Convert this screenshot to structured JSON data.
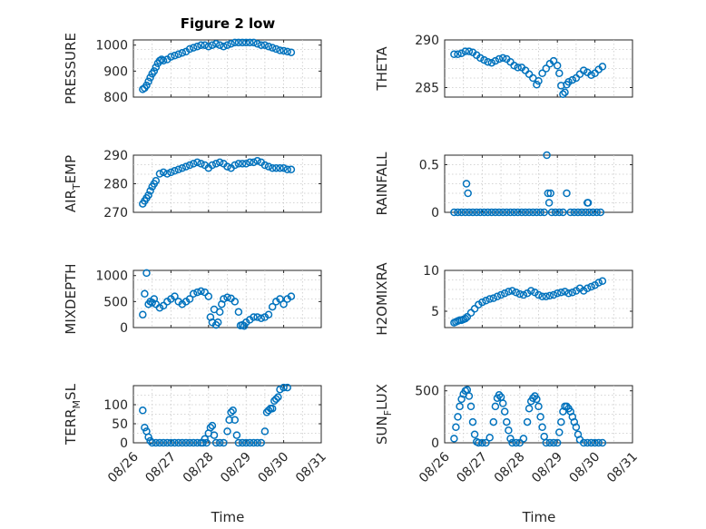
{
  "figure": {
    "title": "Figure 2 low",
    "xlabel": "Time",
    "x_ticks": [
      "08/26",
      "08/27",
      "08/28",
      "08/29",
      "08/30",
      "08/31"
    ],
    "marker_color": "#0072BD"
  },
  "chart_data": [
    {
      "type": "scatter",
      "ylabel": "PRESSURE",
      "ylim": [
        800,
        1020
      ],
      "yticks": [
        "800",
        "900",
        "1000"
      ],
      "ytick_values": [
        800,
        900,
        1000
      ],
      "x": [
        0.25,
        0.3,
        0.35,
        0.4,
        0.45,
        0.5,
        0.55,
        0.6,
        0.65,
        0.7,
        0.75,
        0.8,
        0.9,
        1.0,
        1.1,
        1.2,
        1.3,
        1.4,
        1.5,
        1.6,
        1.7,
        1.8,
        1.9,
        2.0,
        2.1,
        2.2,
        2.3,
        2.4,
        2.5,
        2.6,
        2.7,
        2.8,
        2.9,
        3.0,
        3.1,
        3.2,
        3.3,
        3.4,
        3.5,
        3.6,
        3.7,
        3.8,
        3.9,
        4.0,
        4.1,
        4.2
      ],
      "y": [
        830,
        835,
        845,
        860,
        875,
        890,
        900,
        915,
        930,
        940,
        945,
        940,
        945,
        955,
        960,
        965,
        970,
        975,
        985,
        990,
        995,
        1000,
        1000,
        995,
        1000,
        1005,
        1000,
        995,
        1000,
        1005,
        1010,
        1010,
        1010,
        1010,
        1010,
        1010,
        1005,
        1000,
        1000,
        995,
        990,
        985,
        980,
        978,
        975,
        972
      ]
    },
    {
      "type": "scatter",
      "ylabel": "THETA",
      "ylim": [
        284,
        290
      ],
      "yticks": [
        "285",
        "290"
      ],
      "ytick_values": [
        285,
        290
      ],
      "x": [
        0.25,
        0.35,
        0.45,
        0.55,
        0.65,
        0.75,
        0.85,
        0.95,
        1.05,
        1.15,
        1.25,
        1.35,
        1.45,
        1.55,
        1.65,
        1.75,
        1.85,
        1.95,
        2.05,
        2.15,
        2.25,
        2.35,
        2.45,
        2.5,
        2.6,
        2.7,
        2.8,
        2.9,
        3.0,
        3.05,
        3.1,
        3.15,
        3.2,
        3.25,
        3.3,
        3.4,
        3.5,
        3.6,
        3.7,
        3.8,
        3.9,
        4.0,
        4.1,
        4.2
      ],
      "y": [
        288.5,
        288.5,
        288.6,
        288.8,
        288.8,
        288.7,
        288.4,
        288.1,
        287.9,
        287.7,
        287.6,
        287.8,
        288.0,
        288.1,
        288.0,
        287.7,
        287.3,
        287.1,
        287.1,
        286.8,
        286.4,
        286.0,
        285.3,
        285.7,
        286.5,
        287.0,
        287.5,
        287.8,
        287.3,
        286.5,
        285.2,
        284.3,
        284.5,
        285.3,
        285.6,
        285.8,
        286.0,
        286.4,
        286.8,
        286.6,
        286.3,
        286.5,
        286.9,
        287.2
      ]
    },
    {
      "type": "scatter",
      "ylabel": "AIR_TEMP",
      "ylim": [
        270,
        290
      ],
      "yticks": [
        "270",
        "280",
        "290"
      ],
      "ytick_values": [
        270,
        280,
        290
      ],
      "x": [
        0.25,
        0.3,
        0.35,
        0.4,
        0.45,
        0.5,
        0.55,
        0.6,
        0.7,
        0.8,
        0.9,
        1.0,
        1.1,
        1.2,
        1.3,
        1.4,
        1.5,
        1.6,
        1.7,
        1.8,
        1.9,
        2.0,
        2.1,
        2.2,
        2.3,
        2.4,
        2.5,
        2.6,
        2.7,
        2.8,
        2.9,
        3.0,
        3.1,
        3.2,
        3.3,
        3.4,
        3.5,
        3.6,
        3.7,
        3.8,
        3.9,
        4.0,
        4.1,
        4.2
      ],
      "y": [
        273,
        274,
        275,
        276,
        277.5,
        279,
        280,
        281,
        283.5,
        284,
        283.5,
        284,
        284.5,
        285,
        285.5,
        286,
        286.5,
        287,
        287.5,
        287,
        286.5,
        285.5,
        286.5,
        287,
        287.5,
        287,
        286,
        285.5,
        286.5,
        287,
        287,
        287,
        287.5,
        287.5,
        288,
        287.5,
        286.5,
        286,
        285.5,
        285.5,
        285.5,
        285.5,
        285,
        285
      ]
    },
    {
      "type": "scatter",
      "ylabel": "RAINFALL",
      "ylim": [
        0,
        0.6
      ],
      "yticks": [
        "0",
        "0.5"
      ],
      "ytick_values": [
        0,
        0.5
      ],
      "x": [
        0.25,
        0.35,
        0.45,
        0.55,
        0.58,
        0.62,
        0.65,
        0.75,
        0.85,
        0.95,
        1.05,
        1.15,
        1.25,
        1.35,
        1.45,
        1.55,
        1.65,
        1.75,
        1.85,
        1.95,
        2.05,
        2.15,
        2.25,
        2.35,
        2.45,
        2.55,
        2.65,
        2.72,
        2.75,
        2.78,
        2.82,
        2.85,
        2.95,
        3.05,
        3.15,
        3.25,
        3.35,
        3.45,
        3.55,
        3.65,
        3.75,
        3.8,
        3.82,
        3.85,
        3.95,
        4.05,
        4.15
      ],
      "y": [
        0,
        0,
        0,
        0,
        0.3,
        0.2,
        0,
        0,
        0,
        0,
        0,
        0,
        0,
        0,
        0,
        0,
        0,
        0,
        0,
        0,
        0,
        0,
        0,
        0,
        0,
        0,
        0,
        0.6,
        0.2,
        0.1,
        0.2,
        0,
        0,
        0,
        0,
        0.2,
        0,
        0,
        0,
        0,
        0,
        0.1,
        0.1,
        0,
        0,
        0,
        0
      ]
    },
    {
      "type": "scatter",
      "ylabel": "MIXDEPTH",
      "ylim": [
        0,
        1100
      ],
      "yticks": [
        "0",
        "500",
        "1000"
      ],
      "ytick_values": [
        0,
        500,
        1000
      ],
      "x": [
        0.25,
        0.3,
        0.35,
        0.4,
        0.45,
        0.5,
        0.55,
        0.6,
        0.7,
        0.8,
        0.9,
        1.0,
        1.1,
        1.2,
        1.3,
        1.4,
        1.5,
        1.6,
        1.7,
        1.8,
        1.9,
        2.0,
        2.05,
        2.1,
        2.15,
        2.2,
        2.25,
        2.3,
        2.35,
        2.4,
        2.5,
        2.6,
        2.7,
        2.8,
        2.85,
        2.9,
        2.95,
        3.0,
        3.1,
        3.2,
        3.3,
        3.4,
        3.5,
        3.6,
        3.7,
        3.8,
        3.9,
        4.0,
        4.1,
        4.2
      ],
      "y": [
        250,
        650,
        1050,
        450,
        500,
        480,
        550,
        450,
        380,
        420,
        500,
        550,
        600,
        500,
        450,
        500,
        550,
        650,
        680,
        700,
        680,
        600,
        200,
        100,
        350,
        50,
        100,
        300,
        450,
        550,
        580,
        560,
        500,
        300,
        40,
        50,
        30,
        100,
        150,
        200,
        200,
        180,
        200,
        250,
        400,
        500,
        550,
        450,
        550,
        600
      ]
    },
    {
      "type": "scatter",
      "ylabel": "H2OMIXRA",
      "ylim": [
        3,
        10
      ],
      "yticks": [
        "5",
        "10"
      ],
      "ytick_values": [
        5,
        10
      ],
      "x": [
        0.25,
        0.3,
        0.35,
        0.4,
        0.45,
        0.5,
        0.55,
        0.6,
        0.7,
        0.8,
        0.9,
        1.0,
        1.1,
        1.2,
        1.3,
        1.4,
        1.5,
        1.6,
        1.7,
        1.8,
        1.9,
        2.0,
        2.1,
        2.2,
        2.3,
        2.4,
        2.5,
        2.6,
        2.7,
        2.8,
        2.9,
        3.0,
        3.1,
        3.2,
        3.3,
        3.4,
        3.5,
        3.6,
        3.7,
        3.8,
        3.9,
        4.0,
        4.1,
        4.2
      ],
      "y": [
        3.6,
        3.7,
        3.8,
        3.9,
        3.9,
        4.0,
        4.1,
        4.3,
        4.8,
        5.3,
        5.8,
        6.1,
        6.3,
        6.5,
        6.6,
        6.8,
        7.0,
        7.2,
        7.4,
        7.5,
        7.3,
        7.1,
        7.0,
        7.2,
        7.5,
        7.3,
        7.0,
        6.8,
        6.8,
        6.9,
        7.0,
        7.2,
        7.3,
        7.4,
        7.2,
        7.3,
        7.5,
        7.8,
        7.5,
        7.8,
        8.0,
        8.2,
        8.5,
        8.7
      ]
    },
    {
      "type": "scatter",
      "ylabel": "TERR_MSL",
      "ylim": [
        0,
        150
      ],
      "yticks": [
        "0",
        "50",
        "100"
      ],
      "ytick_values": [
        0,
        50,
        100
      ],
      "x": [
        0.25,
        0.3,
        0.35,
        0.4,
        0.45,
        0.5,
        0.6,
        0.7,
        0.8,
        0.9,
        1.0,
        1.1,
        1.2,
        1.3,
        1.4,
        1.5,
        1.6,
        1.7,
        1.8,
        1.85,
        1.9,
        1.95,
        2.0,
        2.05,
        2.1,
        2.15,
        2.2,
        2.3,
        2.4,
        2.5,
        2.55,
        2.6,
        2.65,
        2.7,
        2.75,
        2.8,
        2.9,
        3.0,
        3.1,
        3.2,
        3.3,
        3.4,
        3.5,
        3.55,
        3.6,
        3.65,
        3.7,
        3.75,
        3.8,
        3.85,
        3.9,
        4.0,
        4.1
      ],
      "y": [
        85,
        40,
        30,
        15,
        5,
        0,
        0,
        0,
        0,
        0,
        0,
        0,
        0,
        0,
        0,
        0,
        0,
        0,
        0,
        0,
        10,
        0,
        25,
        40,
        45,
        20,
        0,
        0,
        0,
        30,
        60,
        80,
        85,
        60,
        20,
        0,
        0,
        0,
        0,
        0,
        0,
        0,
        30,
        80,
        85,
        90,
        90,
        110,
        115,
        120,
        140,
        145,
        145
      ]
    },
    {
      "type": "scatter",
      "ylabel": "SUN_FLUX",
      "ylim": [
        0,
        550
      ],
      "yticks": [
        "0",
        "500"
      ],
      "ytick_values": [
        0,
        500
      ],
      "x": [
        0.25,
        0.3,
        0.35,
        0.4,
        0.45,
        0.5,
        0.55,
        0.6,
        0.65,
        0.7,
        0.75,
        0.8,
        0.85,
        0.9,
        1.0,
        1.1,
        1.2,
        1.3,
        1.35,
        1.4,
        1.45,
        1.5,
        1.55,
        1.6,
        1.65,
        1.7,
        1.75,
        1.8,
        1.9,
        2.0,
        2.1,
        2.2,
        2.25,
        2.3,
        2.35,
        2.4,
        2.45,
        2.5,
        2.55,
        2.6,
        2.65,
        2.7,
        2.8,
        2.9,
        3.0,
        3.05,
        3.1,
        3.15,
        3.2,
        3.25,
        3.3,
        3.35,
        3.4,
        3.45,
        3.5,
        3.55,
        3.6,
        3.7,
        3.8,
        3.9,
        4.0,
        4.1,
        4.2
      ],
      "y": [
        40,
        150,
        250,
        350,
        420,
        470,
        500,
        510,
        450,
        350,
        200,
        80,
        10,
        0,
        0,
        0,
        50,
        200,
        350,
        430,
        460,
        440,
        380,
        300,
        200,
        120,
        40,
        0,
        0,
        0,
        40,
        200,
        330,
        400,
        430,
        450,
        420,
        350,
        250,
        150,
        60,
        0,
        0,
        0,
        0,
        100,
        200,
        300,
        350,
        350,
        330,
        300,
        250,
        200,
        150,
        80,
        30,
        0,
        0,
        0,
        0,
        0,
        0
      ]
    }
  ]
}
